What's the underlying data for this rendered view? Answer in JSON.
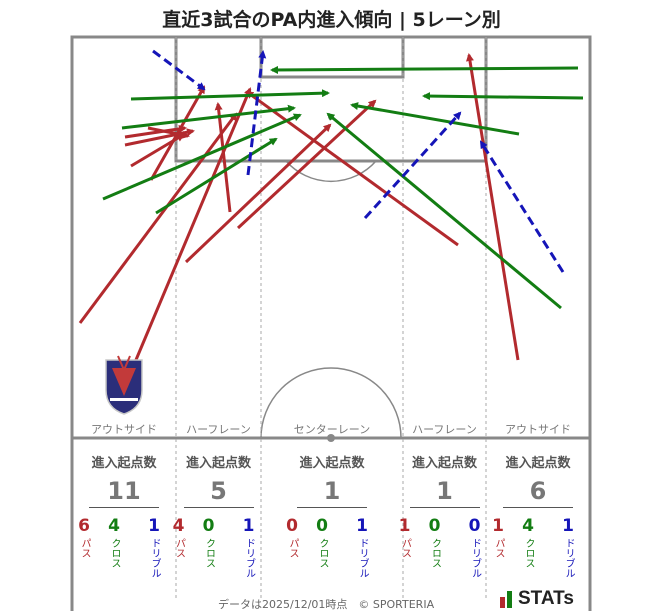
{
  "title": "直近3試合のPA内進入傾向 | 5レーン別",
  "lanes": [
    {
      "name": "アウトサイド",
      "label": "進入起点数",
      "total": "11",
      "pass": "6",
      "cross": "4",
      "dribble": "1"
    },
    {
      "name": "ハーフレーン",
      "label": "進入起点数",
      "total": "5",
      "pass": "4",
      "cross": "0",
      "dribble": "1"
    },
    {
      "name": "センターレーン",
      "label": "進入起点数",
      "total": "1",
      "pass": "0",
      "cross": "0",
      "dribble": "1"
    },
    {
      "name": "ハーフレーン",
      "label": "進入起点数",
      "total": "1",
      "pass": "1",
      "cross": "0",
      "dribble": "0"
    },
    {
      "name": "アウトサイド",
      "label": "進入起点数",
      "total": "6",
      "pass": "1",
      "cross": "4",
      "dribble": "1"
    }
  ],
  "legend": {
    "pass": "パス",
    "cross": "クロス",
    "dribble": "ドリブル"
  },
  "colors": {
    "pass": "#b22a2e",
    "cross": "#137d13",
    "dribble": "#1515b8",
    "pitch_line": "#888888"
  },
  "footer": "データは2025/12/01時点　© SPORTERIA",
  "logo_text": "STATs",
  "chart_data": {
    "type": "pitch-arrow-map",
    "lanes": [
      "アウトサイド",
      "ハーフレーン",
      "センターレーン",
      "ハーフレーン",
      "アウトサイド"
    ],
    "series": [
      {
        "name": "パス",
        "arrows": [
          [
            80,
            323,
            236,
            114
          ],
          [
            133,
            367,
            250,
            89
          ],
          [
            151,
            180,
            204,
            87
          ],
          [
            186,
            262,
            330,
            125
          ],
          [
            238,
            228,
            375,
            101
          ],
          [
            458,
            245,
            247,
            92
          ],
          [
            518,
            360,
            469,
            55
          ],
          [
            230,
            212,
            218,
            104
          ],
          [
            125,
            145,
            193,
            131
          ],
          [
            125,
            137,
            185,
            128
          ],
          [
            131,
            166,
            183,
            135
          ],
          [
            148,
            128,
            188,
            136
          ]
        ]
      },
      {
        "name": "クロス",
        "arrows": [
          [
            131,
            99,
            328,
            93
          ],
          [
            103,
            199,
            300,
            115
          ],
          [
            156,
            213,
            276,
            139
          ],
          [
            122,
            128,
            294,
            108
          ],
          [
            578,
            68,
            272,
            70
          ],
          [
            583,
            98,
            424,
            96
          ],
          [
            519,
            134,
            352,
            105
          ],
          [
            561,
            308,
            328,
            114
          ]
        ]
      },
      {
        "name": "ドリブル",
        "arrows": [
          [
            153,
            51,
            204,
            89
          ],
          [
            248,
            175,
            263,
            52
          ],
          [
            365,
            218,
            460,
            113
          ],
          [
            563,
            272,
            481,
            142
          ]
        ]
      }
    ]
  }
}
